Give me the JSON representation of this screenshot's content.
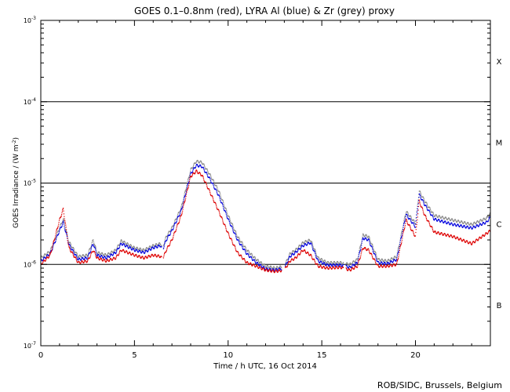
{
  "chart_data": {
    "type": "line",
    "title": "GOES 0.1–0.8nm (red), LYRA Al (blue) & Zr (grey) proxy",
    "xlabel": "Time / h UTC, 16 Oct 2014",
    "ylabel_main": "GOES Irradiance / (W m",
    "ylabel_sup": "-2",
    "ylabel_close": ")",
    "credit": "ROB/SIDC, Brussels, Belgium",
    "xlim": [
      0,
      24
    ],
    "ylim_log10": [
      -7,
      -3
    ],
    "x_ticks": [
      {
        "value": 0,
        "label": "0"
      },
      {
        "value": 5,
        "label": "5"
      },
      {
        "value": 10,
        "label": "10"
      },
      {
        "value": 15,
        "label": "15"
      },
      {
        "value": 20,
        "label": "20"
      }
    ],
    "y_ticks": [
      {
        "exp": -7,
        "base": "10",
        "sup": "-7"
      },
      {
        "exp": -6,
        "base": "10",
        "sup": "-6"
      },
      {
        "exp": -5,
        "base": "10",
        "sup": "-5"
      },
      {
        "exp": -4,
        "base": "10",
        "sup": "-4"
      },
      {
        "exp": -3,
        "base": "10",
        "sup": "-3"
      }
    ],
    "flare_class_lines_log10": [
      -6,
      -5,
      -4
    ],
    "flare_classes": [
      {
        "label": "B",
        "center_log10": -6.5
      },
      {
        "label": "C",
        "center_log10": -5.5
      },
      {
        "label": "M",
        "center_log10": -4.5
      },
      {
        "label": "X",
        "center_log10": -3.5
      }
    ],
    "series": [
      {
        "name": "LYRA Zr proxy",
        "color": "#888888",
        "x": [
          0,
          0.5,
          1.0,
          1.2,
          1.5,
          2.0,
          2.5,
          2.8,
          3.0,
          3.5,
          4.0,
          4.3,
          5.0,
          5.5,
          6.0,
          6.4,
          6.5,
          6.7,
          7.0,
          7.5,
          8.0,
          8.3,
          8.6,
          9.0,
          9.5,
          10.0,
          10.5,
          11.0,
          11.5,
          12.0,
          12.5,
          13.0,
          13.3,
          13.6,
          14.0,
          14.4,
          14.8,
          15.3,
          16.0,
          16.5,
          16.9,
          17.2,
          17.5,
          18.0,
          18.5,
          19.0,
          19.5,
          20.0,
          20.2,
          20.5,
          21.0,
          22.0,
          23.0,
          23.8,
          24.0
        ],
        "y": [
          1.2e-06,
          1.45e-06,
          2.8e-06,
          3.6e-06,
          1.9e-06,
          1.25e-06,
          1.3e-06,
          2e-06,
          1.4e-06,
          1.3e-06,
          1.5e-06,
          1.95e-06,
          1.6e-06,
          1.5e-06,
          1.7e-06,
          1.8e-06,
          1.6e-06,
          2.2e-06,
          2.8e-06,
          5e-06,
          1.45e-05,
          1.85e-05,
          1.8e-05,
          1.3e-05,
          8e-06,
          4e-06,
          2.2e-06,
          1.5e-06,
          1.15e-06,
          9.5e-07,
          9e-07,
          9.5e-07,
          1.35e-06,
          1.5e-06,
          1.85e-06,
          2e-06,
          1.2e-06,
          1.05e-06,
          1.05e-06,
          1e-06,
          1.15e-06,
          2.3e-06,
          2.2e-06,
          1.15e-06,
          1.1e-06,
          1.25e-06,
          4.5e-06,
          3.2e-06,
          8e-06,
          6e-06,
          4e-06,
          3.5e-06,
          3.1e-06,
          3.7e-06,
          4.2e-06
        ]
      },
      {
        "name": "LYRA Al proxy",
        "color": "#0000dd",
        "x": [
          0,
          0.5,
          1.0,
          1.2,
          1.5,
          2.0,
          2.5,
          2.8,
          3.0,
          3.5,
          4.0,
          4.3,
          5.0,
          5.5,
          6.0,
          6.4,
          6.5,
          6.7,
          7.0,
          7.5,
          8.0,
          8.3,
          8.6,
          9.0,
          9.5,
          10.0,
          10.5,
          11.0,
          11.5,
          12.0,
          12.5,
          13.0,
          13.3,
          13.6,
          14.0,
          14.4,
          14.8,
          15.3,
          16.0,
          16.5,
          16.9,
          17.2,
          17.5,
          18.0,
          18.5,
          19.0,
          19.5,
          20.0,
          20.2,
          20.5,
          21.0,
          22.0,
          23.0,
          23.8,
          24.0
        ],
        "y": [
          1.1e-06,
          1.35e-06,
          2.6e-06,
          3.3e-06,
          1.75e-06,
          1.15e-06,
          1.2e-06,
          1.8e-06,
          1.3e-06,
          1.2e-06,
          1.4e-06,
          1.8e-06,
          1.5e-06,
          1.4e-06,
          1.6e-06,
          1.7e-06,
          1.5e-06,
          2e-06,
          2.6e-06,
          4.6e-06,
          1.3e-05,
          1.65e-05,
          1.6e-05,
          1.15e-05,
          7e-06,
          3.6e-06,
          2e-06,
          1.35e-06,
          1.05e-06,
          8.8e-07,
          8.5e-07,
          9e-07,
          1.25e-06,
          1.4e-06,
          1.7e-06,
          1.85e-06,
          1.1e-06,
          9.8e-07,
          9.8e-07,
          9.2e-07,
          1.05e-06,
          2.1e-06,
          2e-06,
          1.05e-06,
          1.02e-06,
          1.15e-06,
          4.1e-06,
          2.9e-06,
          7.2e-06,
          5.4e-06,
          3.6e-06,
          3.1e-06,
          2.8e-06,
          3.3e-06,
          3.8e-06
        ]
      },
      {
        "name": "GOES 0.1-0.8nm",
        "color": "#dd0000",
        "x": [
          0,
          0.5,
          1.0,
          1.2,
          1.5,
          2.0,
          2.5,
          2.8,
          3.0,
          3.5,
          4.0,
          4.3,
          5.0,
          5.5,
          6.0,
          6.4,
          6.5,
          6.7,
          7.0,
          7.5,
          8.0,
          8.3,
          8.6,
          9.0,
          9.5,
          10.0,
          10.5,
          11.0,
          11.5,
          12.0,
          12.5,
          13.0,
          13.3,
          13.6,
          14.0,
          14.4,
          14.8,
          15.3,
          16.0,
          16.5,
          16.9,
          17.2,
          17.5,
          18.0,
          18.5,
          19.0,
          19.5,
          20.0,
          20.2,
          20.5,
          21.0,
          22.0,
          23.0,
          23.8,
          24.0
        ],
        "y": [
          1e-06,
          1.3e-06,
          3.5e-06,
          4.8e-06,
          1.6e-06,
          1.05e-06,
          1.1e-06,
          1.5e-06,
          1.2e-06,
          1.1e-06,
          1.2e-06,
          1.5e-06,
          1.3e-06,
          1.2e-06,
          1.3e-06,
          1.25e-06,
          1.15e-06,
          1.5e-06,
          2e-06,
          4e-06,
          1.2e-05,
          1.4e-05,
          1.25e-05,
          8e-06,
          4.5e-06,
          2.4e-06,
          1.4e-06,
          1.05e-06,
          9.5e-07,
          8.5e-07,
          8.2e-07,
          8.5e-07,
          1.1e-06,
          1.2e-06,
          1.5e-06,
          1.3e-06,
          9.5e-07,
          9e-07,
          9.2e-07,
          8.5e-07,
          9.5e-07,
          1.6e-06,
          1.5e-06,
          9.5e-07,
          9.5e-07,
          1e-06,
          3.5e-06,
          2.2e-06,
          6e-06,
          4e-06,
          2.5e-06,
          2.2e-06,
          1.8e-06,
          2.4e-06,
          2.6e-06
        ]
      }
    ]
  }
}
